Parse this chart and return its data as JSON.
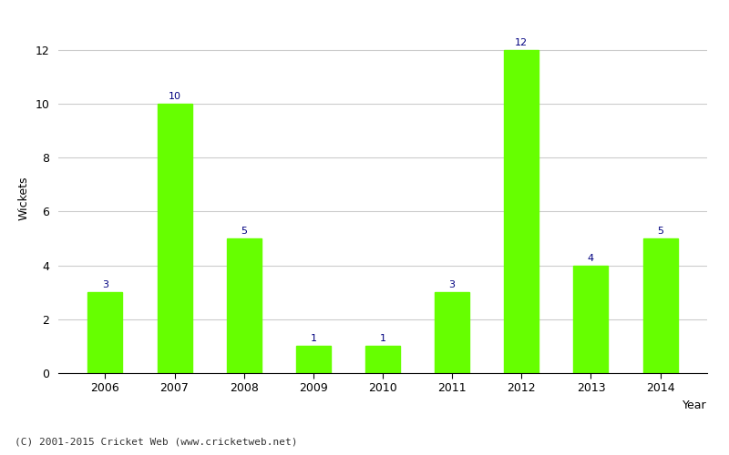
{
  "years": [
    "2006",
    "2007",
    "2008",
    "2009",
    "2010",
    "2011",
    "2012",
    "2013",
    "2014"
  ],
  "values": [
    3,
    10,
    5,
    1,
    1,
    3,
    12,
    4,
    5
  ],
  "bar_color": "#66ff00",
  "label_color": "#000080",
  "title": "",
  "xlabel": "Year",
  "ylabel": "Wickets",
  "ylim_max": 13.0,
  "yticks": [
    0,
    2,
    4,
    6,
    8,
    10,
    12
  ],
  "background_color": "#ffffff",
  "footer": "(C) 2001-2015 Cricket Web (www.cricketweb.net)",
  "label_fontsize": 8,
  "axis_fontsize": 9,
  "footer_fontsize": 8,
  "grid_color": "#cccccc",
  "bar_width": 0.5
}
